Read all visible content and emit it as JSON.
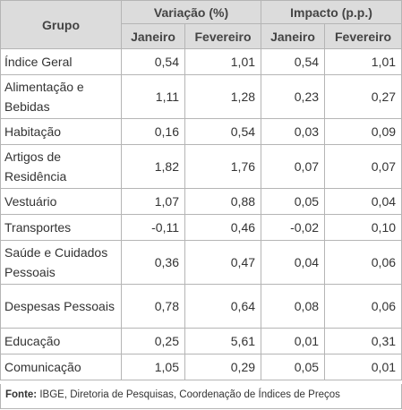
{
  "table": {
    "header": {
      "group": "Grupo",
      "variation": "Variação (%)",
      "impact": "Impacto (p.p.)",
      "jan": "Janeiro",
      "feb": "Fevereiro",
      "jan2": "Janeiro",
      "feb2": "Fevereiro"
    },
    "rows": [
      {
        "group": "Índice Geral",
        "var_jan": "0,54",
        "var_feb": "1,01",
        "imp_jan": "0,54",
        "imp_feb": "1,01"
      },
      {
        "group": "Alimentação e Bebidas",
        "var_jan": "1,11",
        "var_feb": "1,28",
        "imp_jan": "0,23",
        "imp_feb": "0,27"
      },
      {
        "group": "Habitação",
        "var_jan": "0,16",
        "var_feb": "0,54",
        "imp_jan": "0,03",
        "imp_feb": "0,09"
      },
      {
        "group": "Artigos de Residência",
        "var_jan": "1,82",
        "var_feb": "1,76",
        "imp_jan": "0,07",
        "imp_feb": "0,07"
      },
      {
        "group": "Vestuário",
        "var_jan": "1,07",
        "var_feb": "0,88",
        "imp_jan": "0,05",
        "imp_feb": "0,04"
      },
      {
        "group": "Transportes",
        "var_jan": "-0,11",
        "var_feb": "0,46",
        "imp_jan": "-0,02",
        "imp_feb": "0,10"
      },
      {
        "group": "Saúde e Cuidados Pessoais",
        "var_jan": "0,36",
        "var_feb": "0,47",
        "imp_jan": "0,04",
        "imp_feb": "0,06"
      },
      {
        "group": "Despesas Pessoais",
        "var_jan": "0,78",
        "var_feb": "0,64",
        "imp_jan": "0,08",
        "imp_feb": "0,06"
      },
      {
        "group": "Educação",
        "var_jan": "0,25",
        "var_feb": "5,61",
        "imp_jan": "0,01",
        "imp_feb": "0,31"
      },
      {
        "group": "Comunicação",
        "var_jan": "1,05",
        "var_feb": "0,29",
        "imp_jan": "0,05",
        "imp_feb": "0,01"
      }
    ]
  },
  "footer": {
    "label": "Fonte:",
    "text": " IBGE, Diretoria de Pesquisas, Coordenação de Índices de Preços"
  }
}
